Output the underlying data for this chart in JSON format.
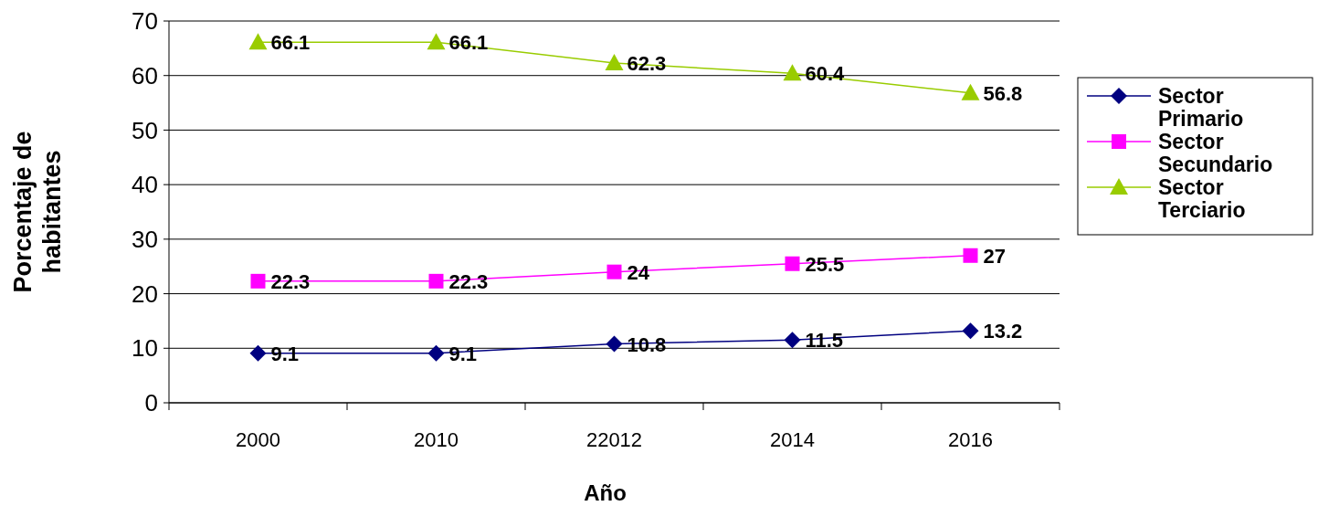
{
  "chart_data": {
    "type": "line",
    "xlabel": "Año",
    "ylabel": "Porcentaje de habitantes",
    "categories": [
      "2000",
      "2010",
      "22012",
      "2014",
      "2016"
    ],
    "series": [
      {
        "name": "Sector Primario",
        "color": "#000080",
        "marker": "diamond",
        "values": [
          9.1,
          9.1,
          10.8,
          11.5,
          13.2
        ]
      },
      {
        "name": "Sector Secundario",
        "color": "#ff00ff",
        "marker": "square",
        "values": [
          22.3,
          22.3,
          24,
          25.5,
          27
        ]
      },
      {
        "name": "Sector Terciario",
        "color": "#99cc00",
        "marker": "triangle",
        "values": [
          66.1,
          66.1,
          62.3,
          60.4,
          56.8
        ]
      }
    ],
    "ylim": [
      0,
      70
    ],
    "yticks": [
      0,
      10,
      20,
      30,
      40,
      50,
      60,
      70
    ],
    "grid": "y",
    "legend": "right",
    "data_labels": true
  }
}
